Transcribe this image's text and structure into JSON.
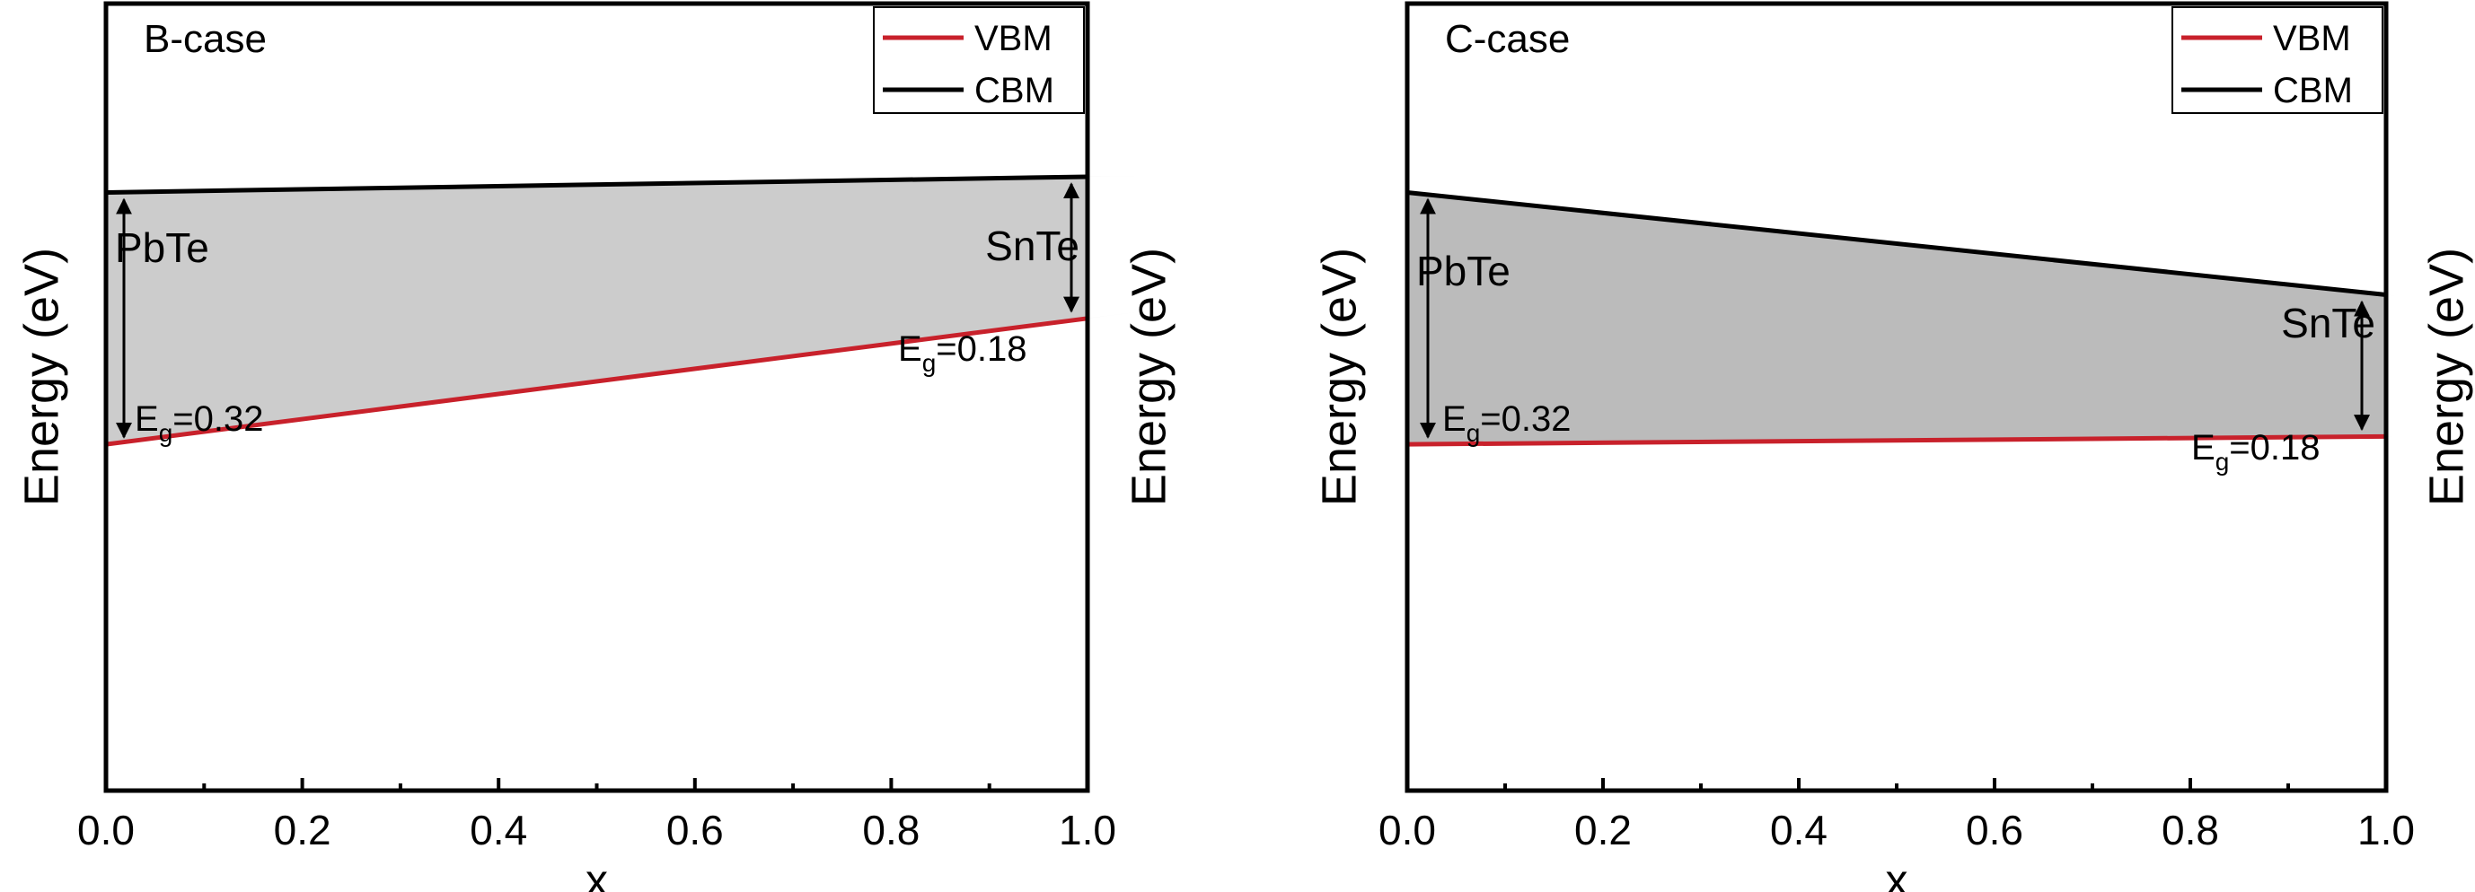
{
  "chart_data": [
    {
      "type": "line",
      "title": "B-case",
      "xlabel": "x",
      "ylabel_left": "Energy (eV)",
      "ylabel_right": "Energy (eV)",
      "xlim": [
        0.0,
        1.0
      ],
      "ylim": [
        -0.6,
        0.4
      ],
      "x_ticks": [
        "0.0",
        "0.2",
        "0.4",
        "0.6",
        "0.8",
        "1.0"
      ],
      "x_tick_values": [
        0.0,
        0.2,
        0.4,
        0.6,
        0.8,
        1.0
      ],
      "legend": {
        "placement": "top-right",
        "entries": [
          "VBM",
          "CBM"
        ]
      },
      "series": [
        {
          "name": "VBM",
          "color": "#c8212b",
          "x": [
            0.0,
            1.0
          ],
          "y": [
            -0.16,
            0.0
          ]
        },
        {
          "name": "CBM",
          "color": "#000000",
          "x": [
            0.0,
            1.0
          ],
          "y": [
            0.16,
            0.18
          ]
        }
      ],
      "shaded_region": {
        "color": "#cccccc"
      },
      "annotations": {
        "left_label": "PbTe",
        "right_label": "SnTe",
        "left_gap_prefix": "E",
        "left_gap_sub": "g",
        "left_gap_value": "=0.32",
        "right_gap_prefix": "E",
        "right_gap_sub": "g",
        "right_gap_value": "=0.18"
      }
    },
    {
      "type": "line",
      "title": "C-case",
      "xlabel": "x",
      "ylabel_left": "Energy (eV)",
      "ylabel_right": "Energy (eV)",
      "xlim": [
        0.0,
        1.0
      ],
      "ylim": [
        -0.6,
        0.4
      ],
      "x_ticks": [
        "0.0",
        "0.2",
        "0.4",
        "0.6",
        "0.8",
        "1.0"
      ],
      "x_tick_values": [
        0.0,
        0.2,
        0.4,
        0.6,
        0.8,
        1.0
      ],
      "legend": {
        "placement": "top-right",
        "entries": [
          "VBM",
          "CBM"
        ]
      },
      "series": [
        {
          "name": "VBM",
          "color": "#c8212b",
          "x": [
            0.0,
            1.0
          ],
          "y": [
            -0.16,
            -0.15
          ]
        },
        {
          "name": "CBM",
          "color": "#000000",
          "x": [
            0.0,
            1.0
          ],
          "y": [
            0.16,
            0.03
          ]
        }
      ],
      "shaded_region": {
        "color": "#bbbbbb"
      },
      "annotations": {
        "left_label": "PbTe",
        "right_label": "SnTe",
        "left_gap_prefix": "E",
        "left_gap_sub": "g",
        "left_gap_value": "=0.32",
        "right_gap_prefix": "E",
        "right_gap_sub": "g",
        "right_gap_value": "=0.18"
      }
    }
  ]
}
